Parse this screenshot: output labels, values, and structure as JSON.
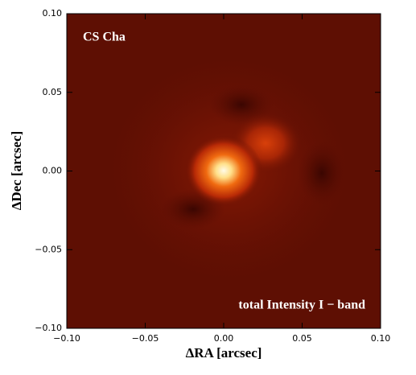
{
  "chart_data": {
    "type": "image",
    "annotations": [
      "CS Cha",
      "total Intensity I − band"
    ],
    "xlabel": "ΔRA [arcsec]",
    "ylabel": "ΔDec [arcsec]",
    "xlim": [
      -0.1,
      0.1
    ],
    "ylim": [
      -0.1,
      0.1
    ],
    "xticks": [
      {
        "value": -0.1,
        "label": "−0.10"
      },
      {
        "value": -0.05,
        "label": "−0.05"
      },
      {
        "value": 0,
        "label": "0.00"
      },
      {
        "value": 0.05,
        "label": "0.05"
      },
      {
        "value": 0.1,
        "label": "0.10"
      }
    ],
    "yticks": [
      {
        "value": -0.1,
        "label": "−0.10"
      },
      {
        "value": -0.05,
        "label": "−0.05"
      },
      {
        "value": 0,
        "label": "0.00"
      },
      {
        "value": 0.05,
        "label": "0.05"
      },
      {
        "value": 0.1,
        "label": "0.10"
      }
    ]
  }
}
